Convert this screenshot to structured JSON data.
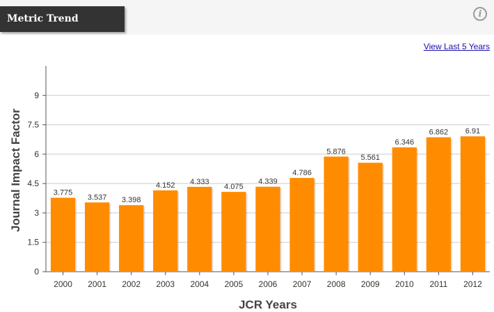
{
  "header": {
    "title": "Metric Trend",
    "info_icon": "info-icon",
    "info_glyph": "i"
  },
  "view_link": "View Last 5 Years",
  "colors": {
    "bar": "#ff8c00",
    "header_bg": "#333333",
    "band_bg": "#f5f5f5",
    "grid": "#cccccc",
    "link": "#1a0dab"
  },
  "chart_data": {
    "type": "bar",
    "categories": [
      "2000",
      "2001",
      "2002",
      "2003",
      "2004",
      "2005",
      "2006",
      "2007",
      "2008",
      "2009",
      "2010",
      "2011",
      "2012"
    ],
    "values": [
      3.775,
      3.537,
      3.398,
      4.152,
      4.333,
      4.075,
      4.339,
      4.786,
      5.876,
      5.561,
      6.346,
      6.862,
      6.91
    ],
    "data_labels": [
      "3.775",
      "3.537",
      "3.398",
      "4.152",
      "4.333",
      "4.075",
      "4.339",
      "4.786",
      "5.876",
      "5.561",
      "6.346",
      "6.862",
      "6.91"
    ],
    "xlabel": "JCR Years",
    "ylabel": "Journal Impact Factor",
    "ylim": [
      0,
      10.5
    ],
    "yticks": [
      "0",
      "1.5",
      "3",
      "4.5",
      "6",
      "7.5",
      "9"
    ],
    "ytick_values": [
      0,
      1.5,
      3,
      4.5,
      6,
      7.5,
      9
    ],
    "grid": true,
    "legend": "none"
  }
}
